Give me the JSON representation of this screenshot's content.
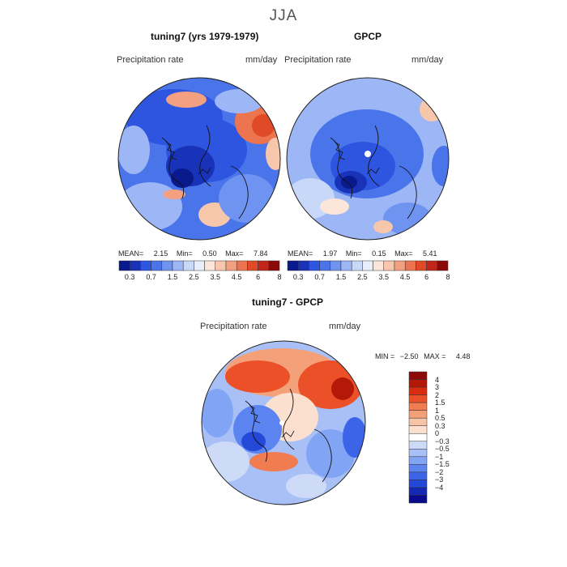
{
  "season": "JJA",
  "colors": {
    "map_palette": [
      "#0a1a8c",
      "#1832b8",
      "#2d55e0",
      "#4a74ea",
      "#6f93f0",
      "#9db6f5",
      "#c8d8f8",
      "#e8eefa",
      "#fbe6d9",
      "#f7c7ac",
      "#f2a080",
      "#ec7550",
      "#e04a26",
      "#c0261a",
      "#8c0a0a"
    ],
    "diff_palette": [
      "#0a0a8c",
      "#1428b4",
      "#2448d8",
      "#3c64e8",
      "#5c84f0",
      "#82a4f4",
      "#a8c0f6",
      "#cddaf8",
      "#ffffff",
      "#fbe0d0",
      "#f8c4a8",
      "#f4a078",
      "#f07c50",
      "#ec5028",
      "#dc2c10",
      "#b41808",
      "#8c0a0a"
    ]
  },
  "panels": [
    {
      "title": "tuning7 (yrs 1979-1979)",
      "variable": "Precipitation rate",
      "units": "mm/day",
      "stats": {
        "mean_label": "MEAN=",
        "mean": "2.15",
        "min_label": "Min=",
        "min": "0.50",
        "max_label": "Max=",
        "max": "7.84"
      }
    },
    {
      "title": "GPCP",
      "variable": "Precipitation rate",
      "units": "mm/day",
      "stats": {
        "mean_label": "MEAN=",
        "mean": "1.97",
        "min_label": "Min=",
        "min": "0.15",
        "max_label": "Max=",
        "max": "5.41"
      }
    }
  ],
  "colorbar_ticks": [
    "0.3",
    "0.7",
    "1.5",
    "2.5",
    "3.5",
    "4.5",
    "6",
    "8"
  ],
  "diff_panel": {
    "title": "tuning7 - GPCP",
    "variable": "Precipitation rate",
    "units": "mm/day",
    "min_label": "MIN =",
    "min": "−2.50",
    "max_label": "MAX =",
    "max": "4.48",
    "colorbar_ticks": [
      "4",
      "3",
      "2",
      "1.5",
      "1",
      "0.5",
      "0.3",
      "0",
      "−0.3",
      "−0.5",
      "−1",
      "−1.5",
      "−2",
      "−3",
      "−4"
    ]
  }
}
